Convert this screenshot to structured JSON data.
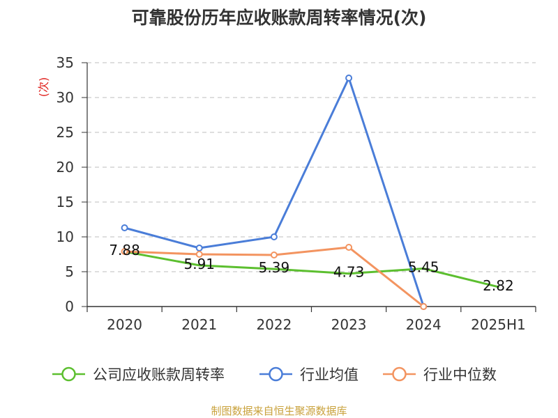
{
  "source_note": "制图数据来自恒生聚源数据库",
  "chart_data": {
    "type": "line",
    "title": "可靠股份历年应收账款周转率情况(次)",
    "xlabel": "",
    "ylabel": "(次)",
    "categories": [
      "2020",
      "2021",
      "2022",
      "2023",
      "2024",
      "2025H1"
    ],
    "ylim": [
      0,
      35
    ],
    "yticks": [
      0,
      5,
      10,
      15,
      20,
      25,
      30,
      35
    ],
    "grid": true,
    "legend_position": "bottom",
    "series": [
      {
        "name": "公司应收账款周转率",
        "values": [
          7.88,
          5.91,
          5.39,
          4.73,
          5.45,
          2.82
        ],
        "color": "#5cbf2f",
        "markers": false,
        "data_labels": true
      },
      {
        "name": "行业均值",
        "values": [
          11.3,
          8.4,
          10.0,
          32.8,
          0,
          null
        ],
        "color": "#4a7dd8",
        "markers": true,
        "data_labels": false
      },
      {
        "name": "行业中位数",
        "values": [
          7.9,
          7.5,
          7.4,
          8.5,
          0,
          null
        ],
        "color": "#f39460",
        "markers": true,
        "data_labels": false
      }
    ]
  }
}
